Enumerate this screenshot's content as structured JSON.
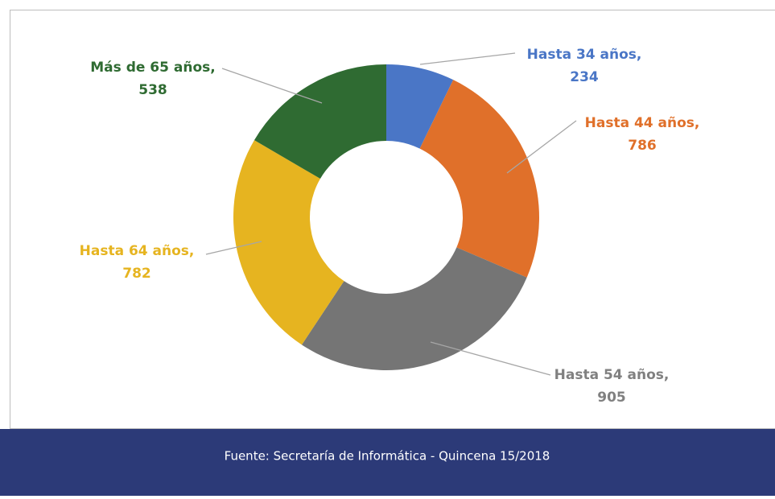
{
  "chart_data": {
    "type": "donut",
    "categories": [
      "Hasta 34 años,",
      "Hasta 44 años,",
      "Hasta 54 años,",
      "Hasta 64 años,",
      "Más de 65 años,"
    ],
    "values": [
      234,
      786,
      905,
      782,
      538
    ],
    "colors": [
      "#4a76c6",
      "#e0702a",
      "#757575",
      "#e6b420",
      "#2f6b32"
    ],
    "footer": "Fuente: Secretaría de Informática - Quincena 15/2018"
  }
}
